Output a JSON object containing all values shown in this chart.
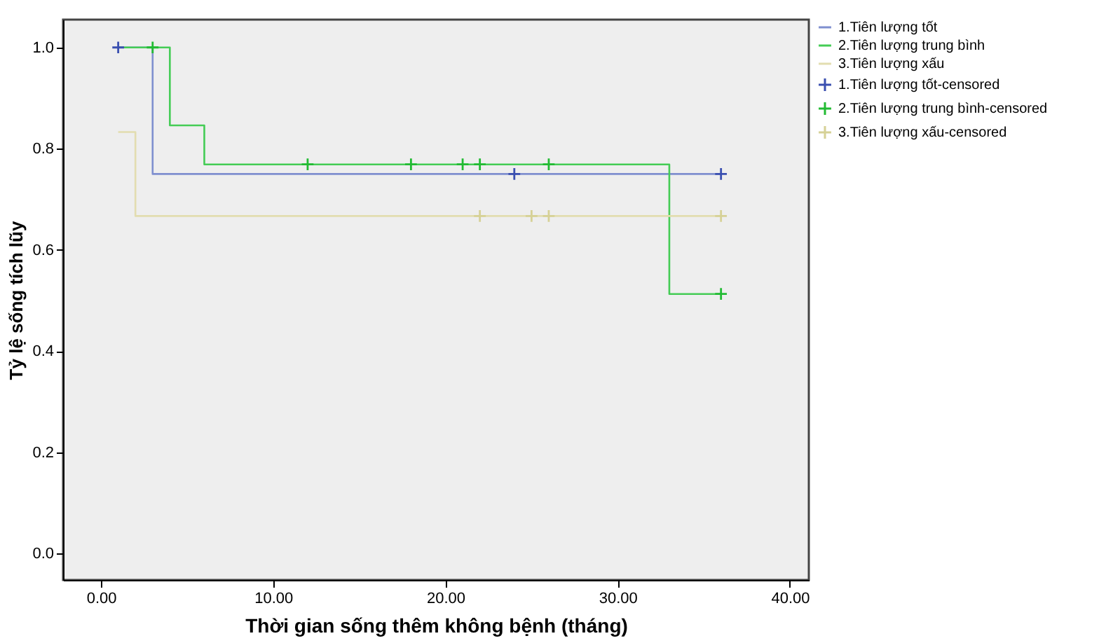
{
  "chart_data": {
    "type": "step",
    "xlabel": "Thời gian sống thêm không bệnh (tháng)",
    "ylabel": "Tỷ lệ sống tích lũy",
    "xlim": [
      -2.2,
      41.1
    ],
    "ylim": [
      -0.052,
      1.055
    ],
    "xticks": [
      {
        "value": 0,
        "label": "0.00"
      },
      {
        "value": 10,
        "label": "10.00"
      },
      {
        "value": 20,
        "label": "20.00"
      },
      {
        "value": 30,
        "label": "30.00"
      },
      {
        "value": 40,
        "label": "40.00"
      }
    ],
    "yticks": [
      {
        "value": 0,
        "label": "0.0"
      },
      {
        "value": 0.2,
        "label": "0.2"
      },
      {
        "value": 0.4,
        "label": "0.4"
      },
      {
        "value": 0.6,
        "label": "0.6"
      },
      {
        "value": 0.8,
        "label": "0.8"
      },
      {
        "value": 1,
        "label": "1.0"
      }
    ],
    "legend": "right",
    "marker": "none",
    "grid": false,
    "series": [
      {
        "name": "1.Tiên lượng tốt",
        "color": "#7f8fcf",
        "x": [
          1,
          3,
          36
        ],
        "values": [
          1,
          0.75,
          0.75
        ]
      },
      {
        "name": "2.Tiên lượng trung bình",
        "color": "#44cc55",
        "x": [
          1,
          4,
          6,
          33,
          36
        ],
        "values": [
          1,
          0.846,
          0.769,
          0.513,
          0.513
        ]
      },
      {
        "name": "3.Tiên lượng xấu",
        "color": "#e2ddb0",
        "x": [
          1,
          2,
          36
        ],
        "values": [
          0.833,
          0.667,
          0.667
        ]
      },
      {
        "name": "1.Tiên lượng tốt-censored",
        "type": "scatter",
        "marker": "cross",
        "color": "#3a4fb0",
        "x": [
          1,
          24,
          36
        ],
        "values": [
          1,
          0.75,
          0.75
        ]
      },
      {
        "name": "2.Tiên lượng trung bình-censored",
        "type": "scatter",
        "marker": "cross",
        "color": "#22bb33",
        "x": [
          3,
          12,
          18,
          21,
          22,
          26,
          36
        ],
        "values": [
          1,
          0.769,
          0.769,
          0.769,
          0.769,
          0.769,
          0.513
        ]
      },
      {
        "name": "3.Tiên lượng xấu-censored",
        "type": "scatter",
        "marker": "cross",
        "color": "#d6d196",
        "x": [
          22,
          25,
          26,
          36
        ],
        "values": [
          0.667,
          0.667,
          0.667,
          0.667
        ]
      }
    ]
  }
}
